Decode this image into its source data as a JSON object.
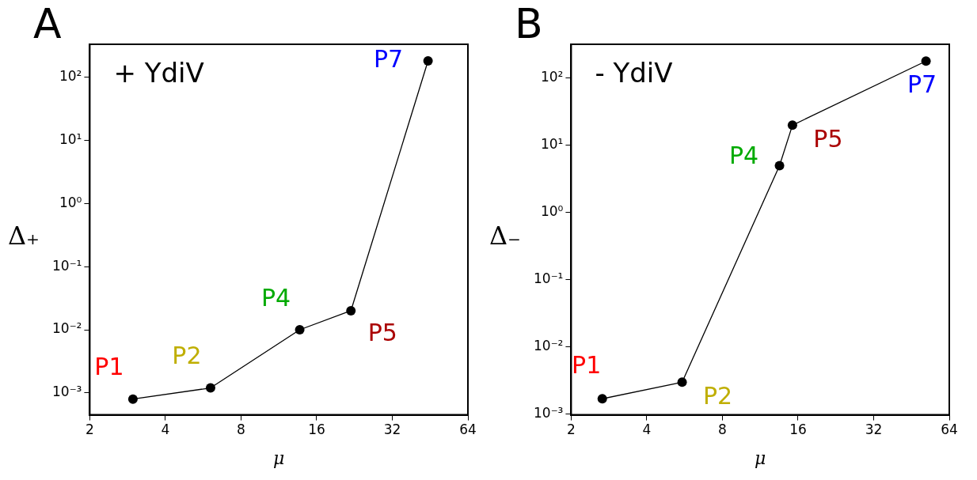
{
  "chart_data": [
    {
      "type": "line",
      "title": "A",
      "xlabel": "μ",
      "ylabel": "Δ₊",
      "log": "xy",
      "grid": false,
      "marker": "circle",
      "line_style": "solid",
      "xlim": [
        2,
        64
      ],
      "xticks": [
        2,
        4,
        8,
        16,
        32,
        64
      ],
      "ylim": [
        0.00045,
        330
      ],
      "yticks": [
        {
          "value": 0.001,
          "label": "10⁻³"
        },
        {
          "value": 0.01,
          "label": "10⁻²"
        },
        {
          "value": 0.1,
          "label": "10⁻¹"
        },
        {
          "value": 1,
          "label": "10⁰"
        },
        {
          "value": 10,
          "label": "10¹"
        },
        {
          "value": 100,
          "label": "10²"
        }
      ],
      "x": [
        2.97,
        6.05,
        13.7,
        21.9,
        44.4
      ],
      "series": [
        {
          "color": "#000000",
          "values": [
            0.0008,
            0.0012,
            0.01,
            0.02,
            180
          ]
        }
      ],
      "annotations": [
        "+ YdiV",
        {
          "text": "P1",
          "x": 2.97,
          "y": 0.0008
        },
        {
          "text": "P2",
          "x": 6.05,
          "y": 0.0012
        },
        {
          "text": "P4",
          "x": 13.7,
          "y": 0.01
        },
        {
          "text": "P5",
          "x": 21.9,
          "y": 0.02
        },
        {
          "text": "P7",
          "x": 44.4,
          "y": 180
        }
      ]
    },
    {
      "type": "line",
      "title": "B",
      "xlabel": "μ",
      "ylabel": "Δ₋",
      "log": "xy",
      "grid": false,
      "marker": "circle",
      "line_style": "solid",
      "xlim": [
        2,
        64
      ],
      "xticks": [
        2,
        4,
        8,
        16,
        32,
        64
      ],
      "ylim": [
        0.00098,
        320
      ],
      "yticks": [
        {
          "value": 0.001,
          "label": "10⁻³"
        },
        {
          "value": 0.01,
          "label": "10⁻²"
        },
        {
          "value": 0.1,
          "label": "10⁻¹"
        },
        {
          "value": 1,
          "label": "10⁰"
        },
        {
          "value": 10,
          "label": "10¹"
        },
        {
          "value": 100,
          "label": "10²"
        }
      ],
      "x": [
        2.66,
        5.53,
        13.5,
        15.2,
        51.7
      ],
      "series": [
        {
          "color": "#000000",
          "values": [
            0.0017,
            0.003,
            5,
            20,
            180
          ]
        }
      ],
      "annotations": [
        "- YdiV",
        {
          "text": "P1",
          "x": 2.66,
          "y": 0.0017
        },
        {
          "text": "P2",
          "x": 5.53,
          "y": 0.003
        },
        {
          "text": "P4",
          "x": 13.5,
          "y": 5
        },
        {
          "text": "P5",
          "x": 15.2,
          "y": 20
        },
        {
          "text": "P7",
          "x": 51.7,
          "y": 180
        }
      ]
    }
  ]
}
